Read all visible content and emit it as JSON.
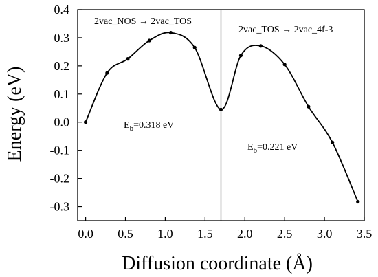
{
  "chart_data": {
    "type": "line",
    "xlabel": "Diffusion coordinate (Å)",
    "ylabel": "Energy (eV)",
    "xlim": [
      -0.1,
      3.5
    ],
    "ylim": [
      -0.35,
      0.4
    ],
    "x_ticks": [
      "0.0",
      "0.5",
      "1.0",
      "1.5",
      "2.0",
      "2.5",
      "3.0",
      "3.5"
    ],
    "y_ticks": [
      "0.4",
      "0.3",
      "0.2",
      "0.1",
      "0.0",
      "-0.1",
      "-0.2",
      "-0.3"
    ],
    "divider_x": 1.7,
    "series": [
      {
        "x": [
          0.0,
          0.27,
          0.53,
          0.8,
          1.07,
          1.37,
          1.7,
          1.95,
          2.2,
          2.5,
          2.8,
          3.1,
          3.42
        ],
        "y": [
          0.0,
          0.175,
          0.225,
          0.29,
          0.318,
          0.265,
          0.045,
          0.237,
          0.271,
          0.205,
          0.055,
          -0.072,
          -0.283
        ]
      }
    ],
    "annotations": {
      "left_path": "2vac_NOS → 2vac_TOS",
      "right_path": "2vac_TOS → 2vac_4f-3",
      "left_eb_main": "E",
      "left_eb_sub": "b",
      "left_eb_value": "=0.318 eV",
      "right_eb_main": "E",
      "right_eb_sub": "b",
      "right_eb_value": "=0.221 eV"
    }
  }
}
